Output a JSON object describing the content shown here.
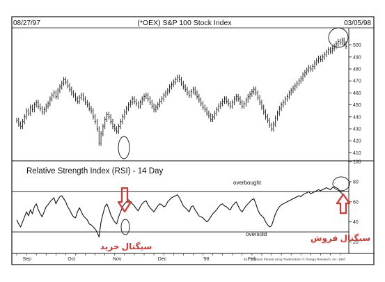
{
  "header": {
    "start_date": "08/27/97",
    "end_date": "03/05/98",
    "title": "(*OEX) S&P 100 Stock Index"
  },
  "rsi_panel": {
    "title": "Relative Strength Index (RSI) - 14 Day",
    "overbought_label": "overbought",
    "oversold_label": "oversold"
  },
  "annotations": {
    "buy_signal": "سیگنال خرید",
    "sell_signal": "سیگنال فروش",
    "arrow_color": "#d9342b"
  },
  "footer": "3/11 10:48am Printed using TradeStation © Omega Research, Inc. 1997",
  "chart_data": [
    {
      "type": "bar",
      "title": "(*OEX) S&P 100 Stock Index",
      "ylim": [
        405,
        512
      ],
      "y_ticks": [
        410,
        420,
        430,
        440,
        450,
        460,
        470,
        480,
        490,
        500
      ],
      "x_labels": [
        "Sep",
        "Oct",
        "Nov",
        "Dec",
        "'98",
        "Feb"
      ],
      "x": [
        0,
        1,
        2,
        3,
        4,
        5,
        6,
        7,
        8,
        9,
        10,
        11,
        12,
        13,
        14,
        15,
        16,
        17,
        18,
        19,
        20,
        21,
        22,
        23,
        24,
        25,
        26,
        27,
        28,
        29,
        30,
        31,
        32,
        33,
        34,
        35,
        36,
        37,
        38,
        39,
        40,
        41,
        42,
        43,
        44,
        45,
        46,
        47,
        48,
        49,
        50,
        51,
        52,
        53,
        54,
        55,
        56,
        57,
        58,
        59,
        60,
        61,
        62,
        63,
        64,
        65,
        66,
        67,
        68,
        69,
        70,
        71,
        72,
        73,
        74,
        75,
        76,
        77,
        78,
        79,
        80,
        81,
        82,
        83,
        84,
        85,
        86,
        87,
        88,
        89,
        90,
        91,
        92,
        93,
        94,
        95,
        96,
        97,
        98,
        99,
        100,
        101,
        102,
        103,
        104,
        105,
        106,
        107,
        108,
        109,
        110,
        111,
        112,
        113,
        114,
        115,
        116,
        117,
        118,
        119,
        120,
        121,
        122,
        123,
        124,
        125,
        126,
        127,
        128,
        129,
        130,
        131,
        132,
        133,
        134,
        135,
        136,
        137,
        138,
        139,
        140,
        141,
        142,
        143,
        144,
        145,
        146,
        147,
        148,
        149,
        150,
        151,
        152,
        153,
        154,
        155,
        156,
        157,
        158,
        159,
        160,
        161,
        162,
        163,
        164,
        165,
        166,
        167,
        168
      ],
      "close": [
        437,
        434,
        432,
        436,
        440,
        445,
        443,
        448,
        446,
        450,
        452,
        449,
        447,
        444,
        446,
        449,
        451,
        455,
        458,
        460,
        457,
        462,
        465,
        468,
        471,
        469,
        466,
        463,
        460,
        458,
        455,
        453,
        456,
        458,
        455,
        452,
        450,
        447,
        445,
        440,
        436,
        430,
        418,
        426,
        432,
        438,
        442,
        440,
        436,
        432,
        430,
        428,
        432,
        436,
        440,
        444,
        447,
        450,
        452,
        455,
        453,
        451,
        449,
        452,
        455,
        457,
        458,
        455,
        452,
        449,
        446,
        448,
        450,
        453,
        455,
        458,
        460,
        462,
        465,
        467,
        469,
        471,
        473,
        471,
        468,
        465,
        463,
        460,
        458,
        461,
        463,
        460,
        457,
        454,
        451,
        448,
        446,
        443,
        441,
        438,
        440,
        443,
        446,
        449,
        451,
        453,
        455,
        453,
        451,
        449,
        452,
        455,
        457,
        455,
        452,
        449,
        451,
        454,
        457,
        459,
        461,
        463,
        460,
        456,
        452,
        448,
        444,
        440,
        437,
        433,
        430,
        434,
        439,
        443,
        447,
        450,
        452,
        455,
        457,
        460,
        462,
        464,
        466,
        468,
        470,
        472,
        475,
        477,
        479,
        481,
        480,
        482,
        485,
        487,
        489,
        488,
        490,
        492,
        494,
        496,
        495,
        497,
        499,
        501,
        503,
        502,
        504,
        501,
        499
      ]
    },
    {
      "type": "line",
      "title": "Relative Strength Index (RSI) - 14 Day",
      "ylim": [
        10,
        100
      ],
      "y_ticks": [
        20,
        40,
        60,
        80,
        100
      ],
      "overbought_level": 70,
      "oversold_level": 30,
      "x_labels": [
        "Sep",
        "Oct",
        "Nov",
        "Dec",
        "'98",
        "Feb"
      ],
      "x": [
        0,
        1,
        2,
        3,
        4,
        5,
        6,
        7,
        8,
        9,
        10,
        11,
        12,
        13,
        14,
        15,
        16,
        17,
        18,
        19,
        20,
        21,
        22,
        23,
        24,
        25,
        26,
        27,
        28,
        29,
        30,
        31,
        32,
        33,
        34,
        35,
        36,
        37,
        38,
        39,
        40,
        41,
        42,
        43,
        44,
        45,
        46,
        47,
        48,
        49,
        50,
        51,
        52,
        53,
        54,
        55,
        56,
        57,
        58,
        59,
        60,
        61,
        62,
        63,
        64,
        65,
        66,
        67,
        68,
        69,
        70,
        71,
        72,
        73,
        74,
        75,
        76,
        77,
        78,
        79,
        80,
        81,
        82,
        83,
        84,
        85,
        86,
        87,
        88,
        89,
        90,
        91,
        92,
        93,
        94,
        95,
        96,
        97,
        98,
        99,
        100,
        101,
        102,
        103,
        104,
        105,
        106,
        107,
        108,
        109,
        110,
        111,
        112,
        113,
        114,
        115,
        116,
        117,
        118,
        119,
        120,
        121,
        122,
        123,
        124,
        125,
        126,
        127,
        128,
        129,
        130,
        131,
        132,
        133,
        134,
        135,
        136,
        137,
        138,
        139,
        140,
        141,
        142,
        143,
        144,
        145,
        146,
        147,
        148,
        149,
        150,
        151,
        152,
        153,
        154,
        155,
        156,
        157,
        158,
        159,
        160,
        161,
        162,
        163,
        164,
        165,
        166,
        167,
        168
      ],
      "values": [
        42,
        38,
        35,
        40,
        45,
        50,
        46,
        52,
        48,
        55,
        58,
        52,
        48,
        45,
        50,
        55,
        57,
        60,
        62,
        64,
        58,
        62,
        65,
        66,
        63,
        60,
        55,
        52,
        48,
        45,
        44,
        50,
        54,
        50,
        46,
        44,
        42,
        38,
        37,
        35,
        33,
        30,
        25,
        40,
        48,
        55,
        58,
        53,
        47,
        43,
        40,
        38,
        45,
        50,
        55,
        58,
        60,
        62,
        60,
        58,
        56,
        53,
        51,
        55,
        58,
        60,
        61,
        57,
        54,
        52,
        50,
        53,
        56,
        58,
        57,
        55,
        56,
        60,
        62,
        64,
        65,
        66,
        67,
        64,
        60,
        56,
        54,
        52,
        50,
        55,
        56,
        52,
        49,
        46,
        45,
        44,
        42,
        40,
        42,
        45,
        48,
        50,
        52,
        55,
        57,
        58,
        56,
        55,
        53,
        52,
        56,
        58,
        60,
        56,
        52,
        50,
        53,
        56,
        58,
        60,
        62,
        63,
        58,
        52,
        48,
        46,
        44,
        40,
        37,
        35,
        36,
        42,
        48,
        52,
        55,
        57,
        58,
        59,
        60,
        61,
        62,
        63,
        64,
        65,
        66,
        65,
        67,
        68,
        69,
        70,
        68,
        69,
        70,
        71,
        72,
        71,
        72,
        73,
        74,
        73,
        72,
        74,
        75,
        74,
        73,
        70,
        68,
        66,
        64
      ]
    }
  ]
}
